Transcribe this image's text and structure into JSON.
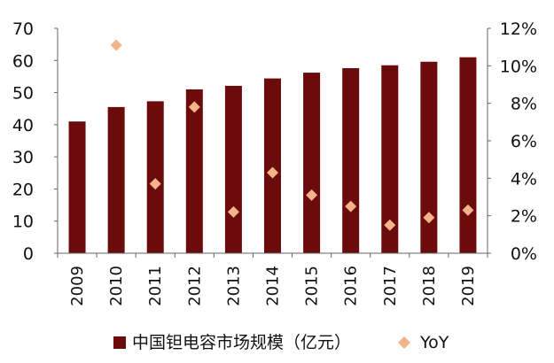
{
  "chart_data": {
    "type": "bar",
    "categories": [
      "2009",
      "2010",
      "2011",
      "2012",
      "2013",
      "2014",
      "2015",
      "2016",
      "2017",
      "2018",
      "2019"
    ],
    "series": [
      {
        "name": "中国钽电容市场规模（亿元）",
        "type": "bar",
        "axis": "left",
        "color": "#6b0b0b",
        "values": [
          41,
          45.5,
          47.3,
          51,
          52.1,
          54.4,
          56.2,
          57.6,
          58.5,
          59.6,
          61
        ]
      },
      {
        "name": "YoY",
        "type": "scatter",
        "axis": "right",
        "color": "#f4b48a",
        "values": [
          null,
          11.1,
          3.7,
          7.8,
          2.2,
          4.3,
          3.1,
          2.5,
          1.5,
          1.9,
          2.3
        ]
      }
    ],
    "ylim_left": [
      0,
      70
    ],
    "yticks_left": [
      "0",
      "10",
      "20",
      "30",
      "40",
      "50",
      "60",
      "70"
    ],
    "ylim_right": [
      0,
      12
    ],
    "yticks_right": [
      "0%",
      "2%",
      "4%",
      "6%",
      "8%",
      "10%",
      "12%"
    ],
    "grid": false,
    "legend_position": "bottom"
  }
}
